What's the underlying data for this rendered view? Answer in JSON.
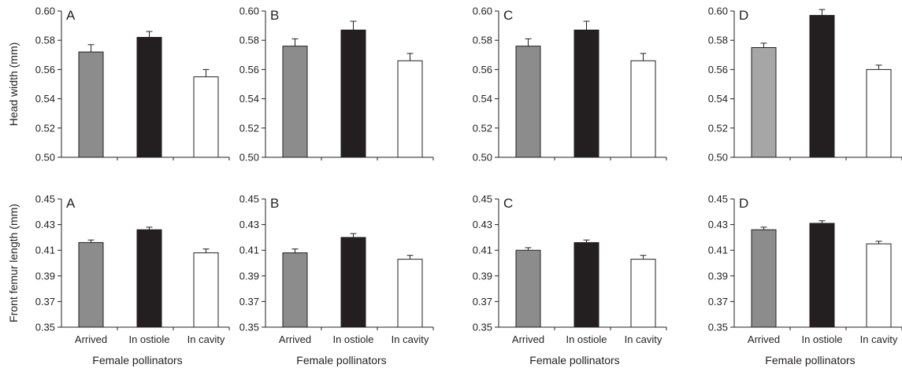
{
  "colors": {
    "arrived": "#8c8c8c",
    "arrived_light": "#a6a6a6",
    "in_ostiole": "#231f20",
    "in_cavity": "#ffffff",
    "axis": "#231f20"
  },
  "chart_data": [
    {
      "type": "bar",
      "panel": "A",
      "row": "head-width",
      "categories": [
        "Arrived",
        "In ostiole",
        "In cavity"
      ],
      "values": [
        0.572,
        0.582,
        0.555
      ],
      "errors": [
        0.005,
        0.004,
        0.005
      ],
      "ylim": [
        0.5,
        0.6
      ],
      "yticks": [
        "0.50",
        "0.52",
        "0.54",
        "0.56",
        "0.58",
        "0.60"
      ],
      "ylabel": "Head width (mm)",
      "xlabel": ""
    },
    {
      "type": "bar",
      "panel": "B",
      "row": "head-width",
      "categories": [
        "Arrived",
        "In ostiole",
        "In cavity"
      ],
      "values": [
        0.576,
        0.587,
        0.566
      ],
      "errors": [
        0.005,
        0.006,
        0.005
      ],
      "ylim": [
        0.5,
        0.6
      ],
      "yticks": [
        "0.50",
        "0.52",
        "0.54",
        "0.56",
        "0.58",
        "0.60"
      ],
      "ylabel": "",
      "xlabel": ""
    },
    {
      "type": "bar",
      "panel": "C",
      "row": "head-width",
      "categories": [
        "Arrived",
        "In ostiole",
        "In cavity"
      ],
      "values": [
        0.576,
        0.587,
        0.566
      ],
      "errors": [
        0.005,
        0.006,
        0.005
      ],
      "ylim": [
        0.5,
        0.6
      ],
      "yticks": [
        "0.50",
        "0.52",
        "0.54",
        "0.56",
        "0.58",
        "0.60"
      ],
      "ylabel": "",
      "xlabel": ""
    },
    {
      "type": "bar",
      "panel": "D",
      "row": "head-width",
      "categories": [
        "Arrived",
        "In ostiole",
        "In cavity"
      ],
      "values": [
        0.575,
        0.597,
        0.56
      ],
      "errors": [
        0.003,
        0.004,
        0.003
      ],
      "ylim": [
        0.5,
        0.6
      ],
      "yticks": [
        "0.50",
        "0.52",
        "0.54",
        "0.56",
        "0.58",
        "0.60"
      ],
      "ylabel": "",
      "xlabel": "",
      "light_arrived": true
    },
    {
      "type": "bar",
      "panel": "A",
      "row": "front-femur",
      "categories": [
        "Arrived",
        "In ostiole",
        "In cavity"
      ],
      "values": [
        0.416,
        0.426,
        0.408
      ],
      "errors": [
        0.002,
        0.002,
        0.003
      ],
      "ylim": [
        0.35,
        0.45
      ],
      "yticks": [
        "0.35",
        "0.37",
        "0.39",
        "0.41",
        "0.43",
        "0.45"
      ],
      "ylabel": "Front femur length (mm)",
      "xlabel": "Female pollinators"
    },
    {
      "type": "bar",
      "panel": "B",
      "row": "front-femur",
      "categories": [
        "Arrived",
        "In ostiole",
        "In cavity"
      ],
      "values": [
        0.408,
        0.42,
        0.403
      ],
      "errors": [
        0.003,
        0.003,
        0.003
      ],
      "ylim": [
        0.35,
        0.45
      ],
      "yticks": [
        "0.35",
        "0.37",
        "0.39",
        "0.41",
        "0.43",
        "0.45"
      ],
      "ylabel": "",
      "xlabel": "Female pollinators"
    },
    {
      "type": "bar",
      "panel": "C",
      "row": "front-femur",
      "categories": [
        "Arrived",
        "In ostiole",
        "In cavity"
      ],
      "values": [
        0.41,
        0.416,
        0.403
      ],
      "errors": [
        0.002,
        0.002,
        0.003
      ],
      "ylim": [
        0.35,
        0.45
      ],
      "yticks": [
        "0.35",
        "0.37",
        "0.39",
        "0.41",
        "0.43",
        "0.45"
      ],
      "ylabel": "",
      "xlabel": "Female pollinators"
    },
    {
      "type": "bar",
      "panel": "D",
      "row": "front-femur",
      "categories": [
        "Arrived",
        "In ostiole",
        "In cavity"
      ],
      "values": [
        0.426,
        0.431,
        0.415
      ],
      "errors": [
        0.002,
        0.002,
        0.002
      ],
      "ylim": [
        0.35,
        0.45
      ],
      "yticks": [
        "0.35",
        "0.37",
        "0.39",
        "0.41",
        "0.43",
        "0.45"
      ],
      "ylabel": "",
      "xlabel": "Female pollinators"
    }
  ]
}
